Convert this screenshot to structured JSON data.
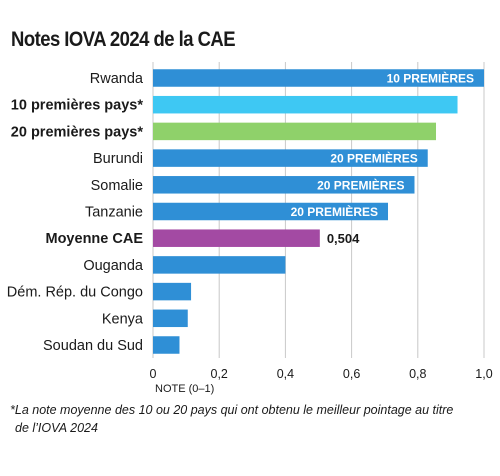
{
  "title": "Notes IOVA 2024 de la CAE",
  "footnote_line1": "*La note moyenne des 10 ou 20 pays qui ont obtenu le meilleur pointage au titre",
  "footnote_line2": "de l’IOVA 2024",
  "colors": {
    "country": "#2f8fd6",
    "top10": "#3ec8f3",
    "top20": "#8fd16a",
    "average": "#a34aa3",
    "grid": "#c8c8c8"
  },
  "chart_data": {
    "type": "bar",
    "orientation": "horizontal",
    "title": "Notes IOVA 2024 de la CAE",
    "xlabel": "NOTE (0–1)",
    "xlim": [
      0,
      1
    ],
    "xticks": [
      "0",
      "0,2",
      "0,4",
      "0,6",
      "0,8",
      "1,0"
    ],
    "grid": true,
    "categories": [
      "Rwanda",
      "10 premières pays*",
      "20 premières pays*",
      "Burundi",
      "Somalie",
      "Tanzanie",
      "Moyenne CAE",
      "Ouganda",
      "Dém. Rép. du Congo",
      "Kenya",
      "Soudan du Sud"
    ],
    "values": [
      1.0,
      0.92,
      0.855,
      0.83,
      0.79,
      0.71,
      0.504,
      0.4,
      0.115,
      0.105,
      0.08
    ],
    "bar_colors": [
      "country",
      "top10",
      "top20",
      "country",
      "country",
      "country",
      "average",
      "country",
      "country",
      "country",
      "country"
    ],
    "bold_categories": [
      "10 premières pays*",
      "20 premières pays*",
      "Moyenne CAE"
    ],
    "annotations": [
      {
        "category": "Rwanda",
        "text": "10 PREMIÈRES",
        "position": "inside"
      },
      {
        "category": "Burundi",
        "text": "20 PREMIÈRES",
        "position": "inside"
      },
      {
        "category": "Somalie",
        "text": "20 PREMIÈRES",
        "position": "inside"
      },
      {
        "category": "Tanzanie",
        "text": "20 PREMIÈRES",
        "position": "inside"
      },
      {
        "category": "Moyenne CAE",
        "text": "0,504",
        "position": "outside"
      }
    ]
  }
}
